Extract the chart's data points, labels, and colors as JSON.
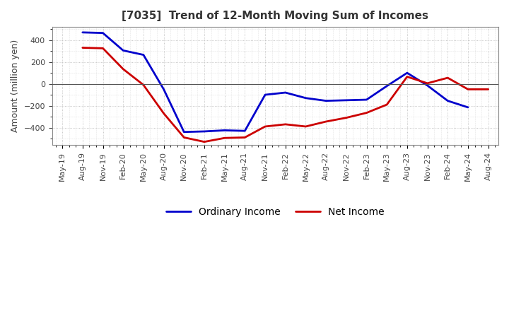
{
  "title": "[7035]  Trend of 12-Month Moving Sum of Incomes",
  "ylabel": "Amount (million yen)",
  "x_labels": [
    "May-19",
    "Aug-19",
    "Nov-19",
    "Feb-20",
    "May-20",
    "Aug-20",
    "Nov-20",
    "Feb-21",
    "May-21",
    "Aug-21",
    "Nov-21",
    "Feb-22",
    "May-22",
    "Aug-22",
    "Nov-22",
    "Feb-23",
    "May-23",
    "Aug-23",
    "Nov-23",
    "Feb-24",
    "May-24",
    "Aug-24"
  ],
  "ordinary_income": [
    null,
    470,
    465,
    305,
    265,
    -50,
    -440,
    -435,
    -425,
    -430,
    -100,
    -80,
    -130,
    -155,
    -150,
    -145,
    -20,
    100,
    -15,
    -155,
    -215,
    null
  ],
  "net_income": [
    null,
    330,
    325,
    135,
    -10,
    -270,
    -490,
    -530,
    -495,
    -490,
    -390,
    -370,
    -390,
    -345,
    -310,
    -265,
    -190,
    65,
    5,
    55,
    -50,
    -50
  ],
  "ordinary_income_color": "#0000cc",
  "net_income_color": "#cc0000",
  "ylim": [
    -560,
    520
  ],
  "yticks": [
    -400,
    -200,
    0,
    200,
    400
  ],
  "bg_color": "#FFFFFF",
  "grid_color": "#999999",
  "legend_labels": [
    "Ordinary Income",
    "Net Income"
  ],
  "line_width": 2.0,
  "title_fontsize": 11,
  "label_fontsize": 9,
  "tick_fontsize": 8,
  "legend_fontsize": 10,
  "title_color": "#333333"
}
